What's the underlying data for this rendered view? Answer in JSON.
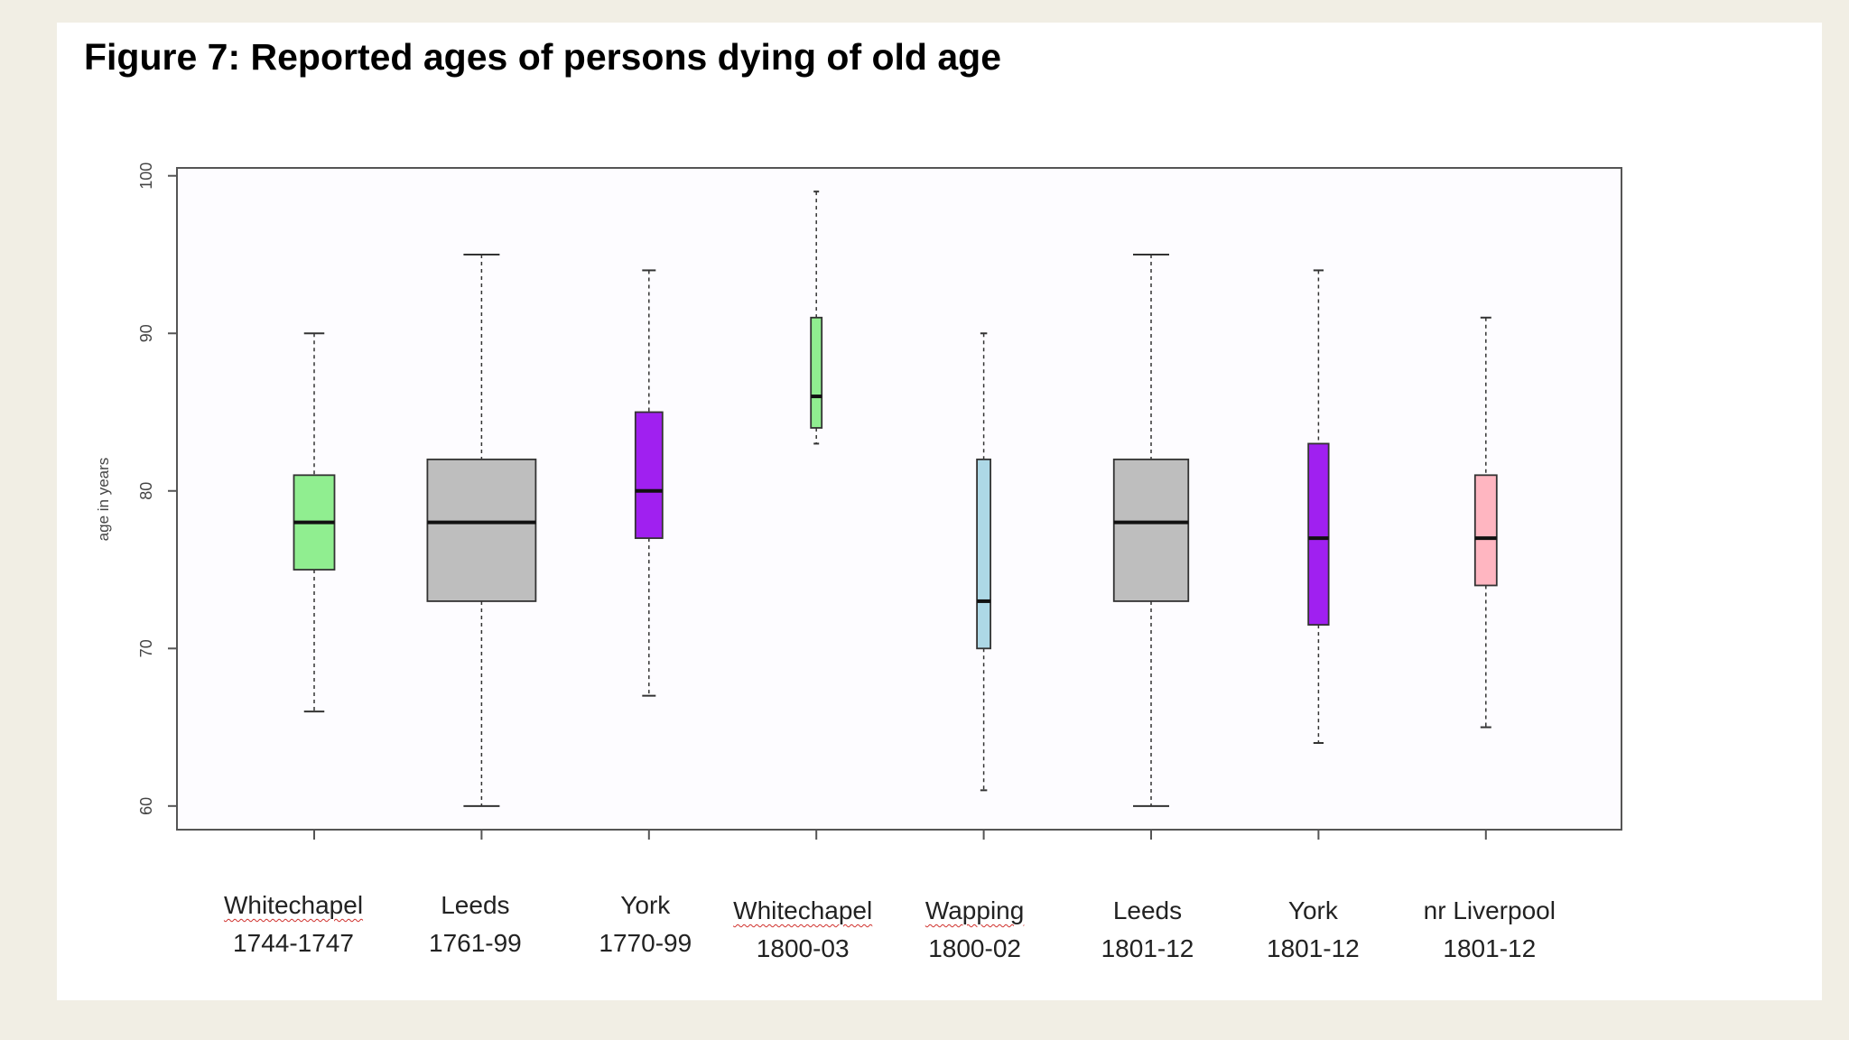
{
  "title": "Figure 7: Reported ages of persons dying of old age",
  "chart_data": {
    "type": "boxplot",
    "title": "Figure 7: Reported ages of persons dying of old age",
    "xlabel": "",
    "ylabel": "age in years",
    "ylim": [
      58.5,
      100.5
    ],
    "yticks": [
      "60",
      "70",
      "80",
      "90",
      "100"
    ],
    "grid": false,
    "series": [
      {
        "name": "Whitechapel 1744-1747",
        "line1": "Whitechapel",
        "line2": "1744-1747",
        "underline": true,
        "color": "#90ee90",
        "whisker_low": 66,
        "q1": 75,
        "median": 78,
        "q3": 81,
        "whisker_high": 90,
        "width": 0.3
      },
      {
        "name": "Leeds 1761-99",
        "line1": "Leeds",
        "line2": "1761-99",
        "underline": false,
        "color": "#bebebe",
        "whisker_low": 60,
        "q1": 73,
        "median": 78,
        "q3": 82,
        "whisker_high": 95,
        "width": 0.8
      },
      {
        "name": "York 1770-99",
        "line1": "York",
        "line2": "1770-99",
        "underline": false,
        "color": "#a020f0",
        "whisker_low": 67,
        "q1": 77,
        "median": 80,
        "q3": 85,
        "whisker_high": 94,
        "width": 0.2
      },
      {
        "name": "Whitechapel 1800-03",
        "line1": "Whitechapel",
        "line2": "1800-03",
        "underline": true,
        "color": "#90ee90",
        "whisker_low": 83,
        "q1": 84,
        "median": 86,
        "q3": 91,
        "whisker_high": 99,
        "width": 0.06
      },
      {
        "name": "Wapping 1800-02",
        "line1": "Wapping",
        "line2": "1800-02",
        "underline": true,
        "color": "#add8e6",
        "whisker_low": 61,
        "q1": 70,
        "median": 73,
        "q3": 82,
        "whisker_high": 90,
        "width": 0.1
      },
      {
        "name": "Leeds 1801-12",
        "line1": "Leeds",
        "line2": "1801-12",
        "underline": false,
        "color": "#bebebe",
        "whisker_low": 60,
        "q1": 73,
        "median": 78,
        "q3": 82,
        "whisker_high": 95,
        "width": 0.55
      },
      {
        "name": "York 1801-12",
        "line1": "York",
        "line2": "1801-12",
        "underline": false,
        "color": "#a020f0",
        "whisker_low": 64,
        "q1": 71.5,
        "median": 77,
        "q3": 83,
        "whisker_high": 94,
        "width": 0.15
      },
      {
        "name": "nr Liverpool 1801-12",
        "line1": "nr Liverpool",
        "line2": "1801-12",
        "underline": false,
        "color": "#ffb6c1",
        "whisker_low": 65,
        "q1": 74,
        "median": 77,
        "q3": 81,
        "whisker_high": 91,
        "width": 0.16
      }
    ]
  }
}
